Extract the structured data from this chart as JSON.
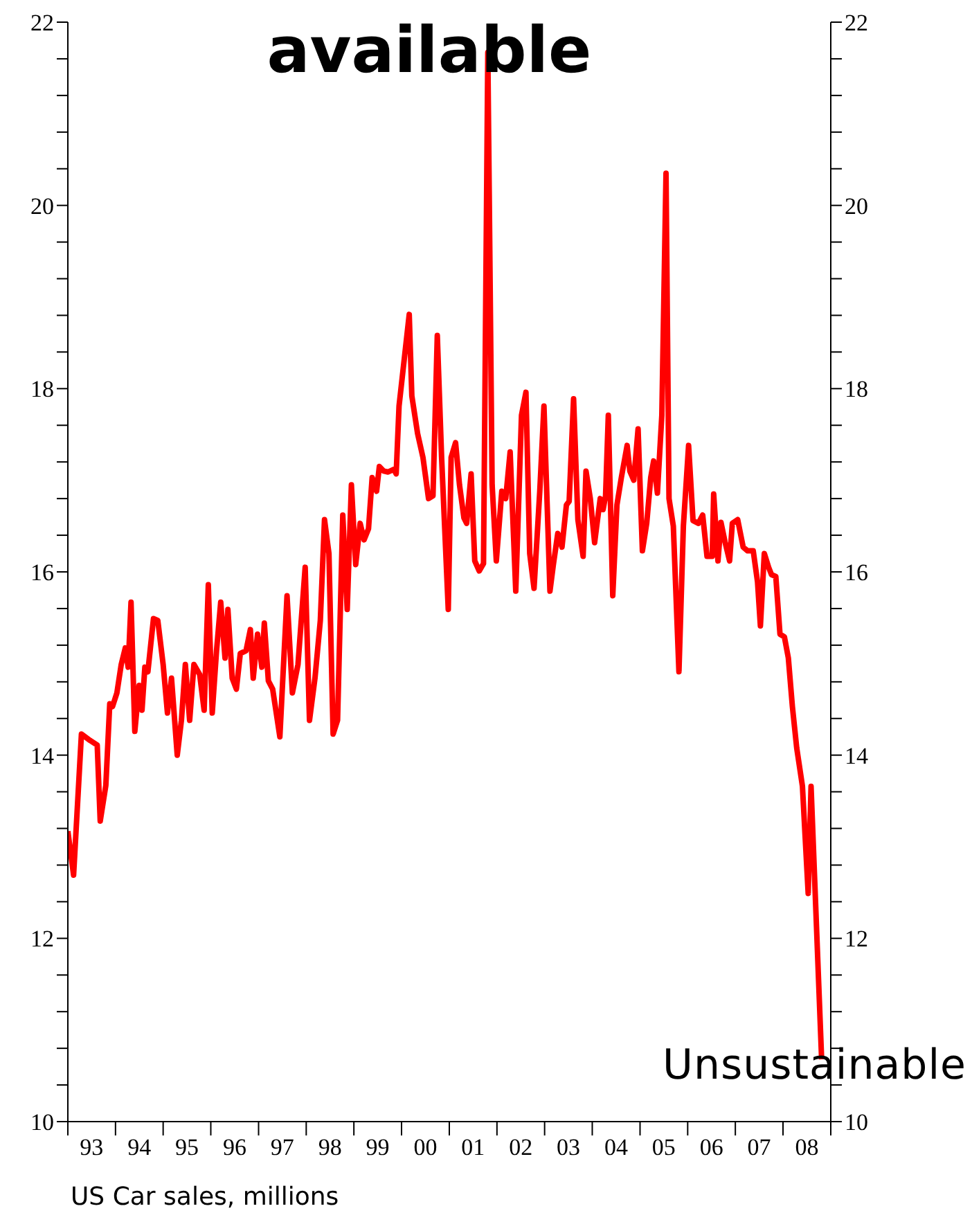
{
  "chart_data": {
    "type": "line",
    "title": "available",
    "annotations": [
      "Unsustainable",
      "US Car sales, millions"
    ],
    "x": [
      "1993-01-01",
      "1993-02-14",
      "1993-04-15",
      "1993-06-20",
      "1993-08-14",
      "1993-09-06",
      "1993-10-19",
      "1993-11-18",
      "1993-12-09",
      "1994-01-12",
      "1994-02-14",
      "1994-03-17",
      "1994-04-08",
      "1994-04-30",
      "1994-05-29",
      "1994-07-01",
      "1994-07-23",
      "1994-08-14",
      "1994-09-06",
      "1994-10-19",
      "1994-11-21",
      "1995-01-01",
      "1995-02-03",
      "1995-03-06",
      "1995-04-19",
      "1995-05-21",
      "1995-06-20",
      "1995-07-23",
      "1995-08-25",
      "1995-10-08",
      "1995-11-11",
      "1995-12-13",
      "1996-01-12",
      "1996-02-14",
      "1996-03-17",
      "1996-04-19",
      "1996-05-11",
      "1996-06-13",
      "1996-07-15",
      "1996-08-14",
      "1996-09-27",
      "1996-10-30",
      "1996-11-21",
      "1996-12-24",
      "1997-01-26",
      "1997-02-14",
      "1997-03-17",
      "1997-04-19",
      "1997-06-13",
      "1997-08-07",
      "1997-09-17",
      "1997-10-30",
      "1997-12-24",
      "1998-01-26",
      "1998-03-09",
      "1998-04-19",
      "1998-05-21",
      "1998-06-24",
      "1998-07-26",
      "1998-08-29",
      "1998-10-08",
      "1998-11-11",
      "1998-12-13",
      "1999-01-15",
      "1999-02-18",
      "1999-03-20",
      "1999-04-23",
      "1999-05-21",
      "1999-06-24",
      "1999-07-15",
      "1999-08-18",
      "1999-09-20",
      "1999-11-03",
      "1999-11-21",
      "1999-12-13",
      "2000-02-29",
      "2000-03-20",
      "2000-05-03",
      "2000-06-13",
      "2000-07-26",
      "2000-08-29",
      "2000-10-01",
      "2000-11-03",
      "2000-12-24",
      "2001-01-15",
      "2001-02-18",
      "2001-03-20",
      "2001-04-23",
      "2001-05-14",
      "2001-06-17",
      "2001-07-15",
      "2001-08-18",
      "2001-09-20",
      "2001-10-23",
      "2001-11-25",
      "2001-12-27",
      "2002-02-07",
      "2002-03-09",
      "2002-04-12",
      "2002-05-25",
      "2002-07-08",
      "2002-08-11",
      "2002-09-09",
      "2002-10-12",
      "2002-11-25",
      "2002-12-27",
      "2003-02-11",
      "2003-03-09",
      "2003-04-12",
      "2003-05-14",
      "2003-06-17",
      "2003-07-08",
      "2003-08-11",
      "2003-09-13",
      "2003-10-23",
      "2003-11-14",
      "2003-12-17",
      "2004-01-19",
      "2004-03-02",
      "2004-03-24",
      "2004-04-12",
      "2004-05-03",
      "2004-06-06",
      "2004-07-08",
      "2004-08-11",
      "2004-09-24",
      "2004-10-15",
      "2004-11-14",
      "2004-12-17",
      "2005-01-19",
      "2005-02-21",
      "2005-03-24",
      "2005-04-15",
      "2005-05-14",
      "2005-06-17",
      "2005-07-19",
      "2005-08-11",
      "2005-09-13",
      "2005-10-26",
      "2005-11-29",
      "2006-01-08",
      "2006-02-11",
      "2006-03-24",
      "2006-04-26",
      "2006-05-29",
      "2006-07-08",
      "2006-07-19",
      "2006-08-21",
      "2006-09-13",
      "2006-10-15",
      "2006-11-18",
      "2006-12-09",
      "2007-01-19",
      "2007-03-02",
      "2007-04-05",
      "2007-05-18",
      "2007-06-20",
      "2007-07-12",
      "2007-08-11",
      "2007-09-13",
      "2007-10-05",
      "2007-11-07",
      "2007-12-09",
      "2008-01-12",
      "2008-02-11",
      "2008-03-13",
      "2008-04-15",
      "2008-05-29",
      "2008-07-12",
      "2008-08-03",
      "2008-10-23"
    ],
    "series": [
      {
        "color": "#ff0000",
        "values": [
          13.17,
          12.69,
          14.23,
          14.16,
          14.11,
          13.28,
          13.67,
          14.56,
          14.53,
          14.68,
          14.99,
          15.17,
          14.96,
          15.67,
          14.26,
          14.76,
          14.49,
          14.96,
          14.91,
          15.49,
          15.47,
          14.99,
          14.46,
          14.84,
          14.0,
          14.38,
          14.99,
          14.38,
          14.99,
          14.88,
          14.49,
          15.86,
          14.46,
          15.14,
          15.67,
          15.06,
          15.59,
          14.84,
          14.72,
          15.11,
          15.14,
          15.37,
          14.84,
          15.32,
          14.96,
          15.44,
          14.81,
          14.72,
          14.2,
          15.74,
          14.68,
          14.99,
          16.05,
          14.38,
          14.84,
          15.47,
          16.57,
          16.2,
          14.23,
          14.38,
          16.62,
          15.59,
          16.95,
          16.08,
          16.53,
          16.35,
          16.47,
          17.03,
          16.88,
          17.15,
          17.1,
          17.09,
          17.12,
          17.07,
          17.81,
          18.81,
          17.92,
          17.51,
          17.25,
          16.8,
          16.83,
          18.58,
          17.25,
          15.59,
          17.25,
          17.41,
          16.95,
          16.59,
          16.53,
          17.07,
          16.12,
          16.01,
          16.09,
          21.67,
          16.95,
          16.12,
          16.88,
          16.8,
          17.31,
          15.79,
          17.71,
          17.96,
          16.2,
          15.82,
          16.88,
          17.81,
          15.79,
          16.08,
          16.42,
          16.27,
          16.73,
          16.77,
          17.89,
          16.57,
          16.17,
          17.1,
          16.8,
          16.32,
          16.8,
          16.68,
          16.83,
          17.71,
          15.74,
          16.73,
          17.03,
          17.38,
          17.1,
          17.0,
          17.56,
          16.23,
          16.53,
          17.03,
          17.21,
          16.86,
          17.71,
          20.35,
          16.8,
          16.5,
          14.91,
          16.5,
          17.38,
          16.56,
          16.53,
          16.62,
          16.17,
          16.17,
          16.85,
          16.12,
          16.54,
          16.32,
          16.12,
          16.53,
          16.57,
          16.27,
          16.23,
          16.23,
          15.89,
          15.41,
          16.2,
          16.05,
          15.97,
          15.95,
          15.32,
          15.29,
          15.06,
          14.53,
          14.08,
          13.66,
          12.49,
          13.66,
          10.68
        ]
      }
    ],
    "xlim": [
      "1993-01-01",
      "2009-01-01"
    ],
    "xticks": [
      {
        "value": "1993-01-01",
        "label": null
      },
      {
        "value": "1993-07-02",
        "label": "93"
      },
      {
        "value": "1994-01-01",
        "label": null
      },
      {
        "value": "1994-07-02",
        "label": "94"
      },
      {
        "value": "1995-01-01",
        "label": null
      },
      {
        "value": "1995-07-02",
        "label": "95"
      },
      {
        "value": "1996-01-01",
        "label": null
      },
      {
        "value": "1996-07-02",
        "label": "96"
      },
      {
        "value": "1997-01-01",
        "label": null
      },
      {
        "value": "1997-07-02",
        "label": "97"
      },
      {
        "value": "1998-01-01",
        "label": null
      },
      {
        "value": "1998-07-02",
        "label": "98"
      },
      {
        "value": "1999-01-01",
        "label": null
      },
      {
        "value": "1999-07-02",
        "label": "99"
      },
      {
        "value": "2000-01-01",
        "label": null
      },
      {
        "value": "2000-07-02",
        "label": "00"
      },
      {
        "value": "2001-01-01",
        "label": null
      },
      {
        "value": "2001-07-02",
        "label": "01"
      },
      {
        "value": "2002-01-01",
        "label": null
      },
      {
        "value": "2002-07-02",
        "label": "02"
      },
      {
        "value": "2003-01-01",
        "label": null
      },
      {
        "value": "2003-07-02",
        "label": "03"
      },
      {
        "value": "2004-01-01",
        "label": null
      },
      {
        "value": "2004-07-02",
        "label": "04"
      },
      {
        "value": "2005-01-01",
        "label": null
      },
      {
        "value": "2005-07-02",
        "label": "05"
      },
      {
        "value": "2006-01-01",
        "label": null
      },
      {
        "value": "2006-07-02",
        "label": "06"
      },
      {
        "value": "2007-01-01",
        "label": null
      },
      {
        "value": "2007-07-02",
        "label": "07"
      },
      {
        "value": "2008-01-01",
        "label": null
      },
      {
        "value": "2008-07-02",
        "label": "08"
      },
      {
        "value": "2009-01-01",
        "label": null
      }
    ],
    "ylim": [
      10,
      22
    ],
    "yticks": [
      10,
      {
        "value": 10.4,
        "label": null
      },
      {
        "value": 10.8,
        "label": null
      },
      {
        "value": 11.2,
        "label": null
      },
      {
        "value": 11.6,
        "label": null
      },
      12,
      {
        "value": 12.4,
        "label": null
      },
      {
        "value": 12.8,
        "label": null
      },
      {
        "value": 13.2,
        "label": null
      },
      {
        "value": 13.6,
        "label": null
      },
      14,
      {
        "value": 14.4,
        "label": null
      },
      {
        "value": 14.8,
        "label": null
      },
      {
        "value": 15.2,
        "label": null
      },
      {
        "value": 15.6,
        "label": null
      },
      16,
      {
        "value": 16.4,
        "label": null
      },
      {
        "value": 16.8,
        "label": null
      },
      {
        "value": 17.2,
        "label": null
      },
      {
        "value": 17.6,
        "label": null
      },
      18,
      {
        "value": 18.4,
        "label": null
      },
      {
        "value": 18.8,
        "label": null
      },
      {
        "value": 19.2,
        "label": null
      },
      {
        "value": 19.6,
        "label": null
      },
      20,
      {
        "value": 20.4,
        "label": null
      },
      {
        "value": 20.8,
        "label": null
      },
      {
        "value": 21.2,
        "label": null
      },
      {
        "value": 21.6,
        "label": null
      },
      22
    ],
    "y2lim": [
      10,
      22
    ],
    "y2ticks": [
      10,
      {
        "value": 10.4,
        "label": null
      },
      {
        "value": 10.8,
        "label": null
      },
      {
        "value": 11.2,
        "label": null
      },
      {
        "value": 11.6,
        "label": null
      },
      12,
      {
        "value": 12.4,
        "label": null
      },
      {
        "value": 12.8,
        "label": null
      },
      {
        "value": 13.2,
        "label": null
      },
      {
        "value": 13.6,
        "label": null
      },
      14,
      {
        "value": 14.4,
        "label": null
      },
      {
        "value": 14.8,
        "label": null
      },
      {
        "value": 15.2,
        "label": null
      },
      {
        "value": 15.6,
        "label": null
      },
      16,
      {
        "value": 16.4,
        "label": null
      },
      {
        "value": 16.8,
        "label": null
      },
      {
        "value": 17.2,
        "label": null
      },
      {
        "value": 17.6,
        "label": null
      },
      18,
      {
        "value": 18.4,
        "label": null
      },
      {
        "value": 18.8,
        "label": null
      },
      {
        "value": 19.2,
        "label": null
      },
      {
        "value": 19.6,
        "label": null
      },
      20,
      {
        "value": 20.4,
        "label": null
      },
      {
        "value": 20.8,
        "label": null
      },
      {
        "value": 21.2,
        "label": null
      },
      {
        "value": 21.6,
        "label": null
      },
      22
    ],
    "grid": false,
    "legend": false,
    "marker": "none",
    "line_style": "solid"
  }
}
